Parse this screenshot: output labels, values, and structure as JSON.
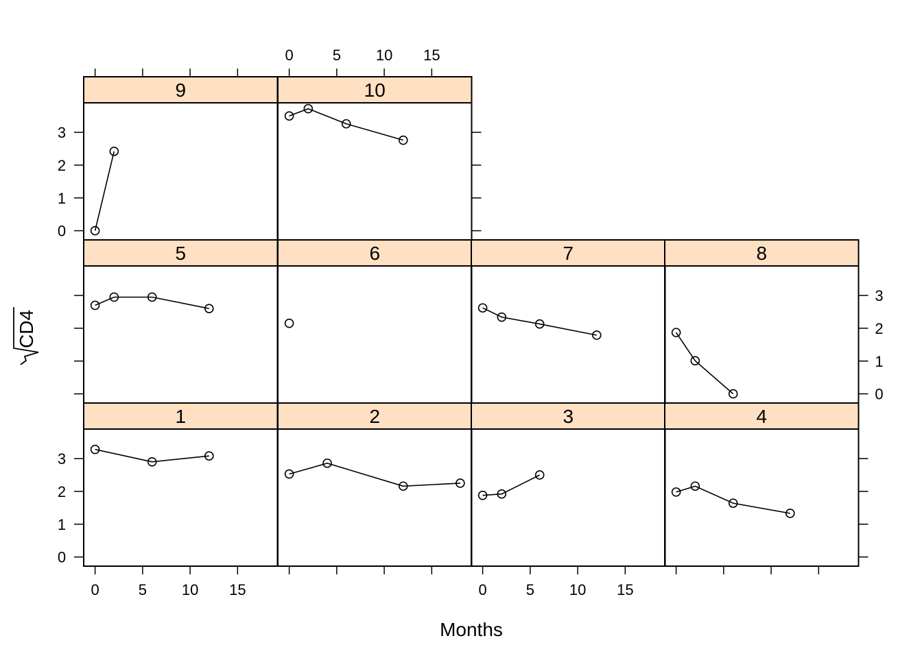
{
  "chart_data": {
    "type": "line",
    "layout": "trellis",
    "xlabel": "Months",
    "ylabel": "√CD4",
    "ylabel_radicand": "CD4",
    "xlim": [
      -1.2,
      19.2
    ],
    "ylim": [
      -0.28,
      3.9
    ],
    "xticks": [
      0,
      5,
      10,
      15
    ],
    "yticks": [
      0,
      1,
      2,
      3
    ],
    "strip_color": "#ffe0c2",
    "panels": [
      {
        "label": "1",
        "x": [
          0,
          6,
          12
        ],
        "y": [
          3.28,
          2.9,
          3.08
        ]
      },
      {
        "label": "2",
        "x": [
          0,
          4,
          12,
          18
        ],
        "y": [
          2.53,
          2.86,
          2.16,
          2.25
        ]
      },
      {
        "label": "3",
        "x": [
          0,
          2,
          6
        ],
        "y": [
          1.88,
          1.92,
          2.5
        ]
      },
      {
        "label": "4",
        "x": [
          0,
          2,
          6,
          12
        ],
        "y": [
          1.98,
          2.16,
          1.64,
          1.33
        ]
      },
      {
        "label": "5",
        "x": [
          0,
          2,
          6,
          12
        ],
        "y": [
          2.7,
          2.95,
          2.95,
          2.6
        ]
      },
      {
        "label": "6",
        "x": [
          0
        ],
        "y": [
          2.15
        ]
      },
      {
        "label": "7",
        "x": [
          0,
          2,
          6,
          12
        ],
        "y": [
          2.62,
          2.34,
          2.13,
          1.79
        ]
      },
      {
        "label": "8",
        "x": [
          0,
          2,
          6
        ],
        "y": [
          1.87,
          1.01,
          0.0
        ]
      },
      {
        "label": "9",
        "x": [
          0,
          2
        ],
        "y": [
          0.0,
          2.42
        ]
      },
      {
        "label": "10",
        "x": [
          0,
          2,
          6,
          12
        ],
        "y": [
          3.5,
          3.72,
          3.26,
          2.76
        ]
      }
    ]
  }
}
